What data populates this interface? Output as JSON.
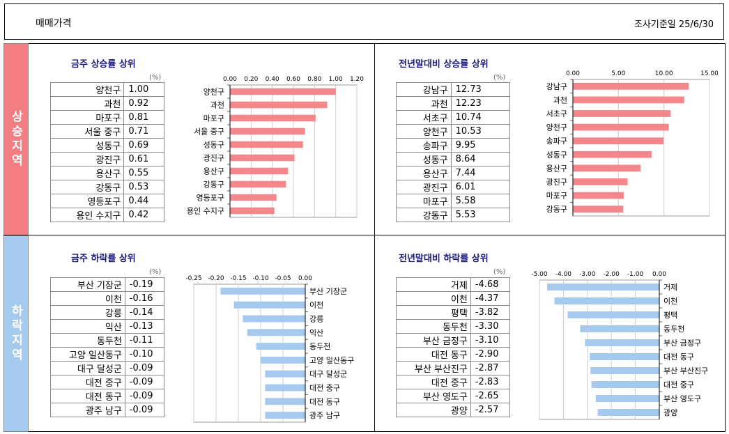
{
  "header": {
    "title": "매매가격",
    "base_date": "조사기준일  25/6/30"
  },
  "bands": {
    "rise": "상승지역",
    "fall": "하락지역"
  },
  "unit_label": "(%)",
  "chart_data": [
    {
      "type": "bar",
      "title": "금주 상승률 상위",
      "categories": [
        "양천구",
        "과천",
        "마포구",
        "서울 중구",
        "성동구",
        "광진구",
        "용산구",
        "강동구",
        "영등포구",
        "용인 수지구"
      ],
      "values": [
        1.0,
        0.92,
        0.81,
        0.71,
        0.69,
        0.61,
        0.55,
        0.53,
        0.44,
        0.42
      ],
      "display_values": [
        "1.00",
        "0.92",
        "0.81",
        "0.71",
        "0.69",
        "0.61",
        "0.55",
        "0.53",
        "0.44",
        "0.42"
      ],
      "xlim": [
        0,
        1.2
      ],
      "ticks": [
        0,
        0.2,
        0.4,
        0.6,
        0.8,
        1.0,
        1.2
      ],
      "tick_labels": [
        "0.00",
        "0.20",
        "0.40",
        "0.60",
        "0.80",
        "1.00",
        "1.20"
      ],
      "color": "#f4878b"
    },
    {
      "type": "bar",
      "title": "전년말대비 상승률 상위",
      "categories": [
        "강남구",
        "과천",
        "서초구",
        "양천구",
        "송파구",
        "성동구",
        "용산구",
        "광진구",
        "마포구",
        "강동구"
      ],
      "values": [
        12.73,
        12.23,
        10.74,
        10.53,
        9.95,
        8.64,
        7.44,
        6.01,
        5.58,
        5.53
      ],
      "display_values": [
        "12.73",
        "12.23",
        "10.74",
        "10.53",
        "9.95",
        "8.64",
        "7.44",
        "6.01",
        "5.58",
        "5.53"
      ],
      "xlim": [
        0,
        15
      ],
      "ticks": [
        0,
        5,
        10,
        15
      ],
      "tick_labels": [
        "0.00",
        "5.00",
        "10.00",
        "15.00"
      ],
      "color": "#f4878b"
    },
    {
      "type": "bar",
      "title": "금주 하락률 상위",
      "categories": [
        "부산 기장군",
        "이천",
        "강릉",
        "익산",
        "동두천",
        "고양 일산동구",
        "대구 달성군",
        "대전 중구",
        "대전 동구",
        "광주 남구"
      ],
      "values": [
        -0.19,
        -0.16,
        -0.14,
        -0.13,
        -0.11,
        -0.1,
        -0.09,
        -0.09,
        -0.09,
        -0.09
      ],
      "display_values": [
        "-0.19",
        "-0.16",
        "-0.14",
        "-0.13",
        "-0.11",
        "-0.10",
        "-0.09",
        "-0.09",
        "-0.09",
        "-0.09"
      ],
      "xlim": [
        -0.25,
        0
      ],
      "ticks": [
        -0.25,
        -0.2,
        -0.15,
        -0.1,
        -0.05,
        0
      ],
      "tick_labels": [
        "-0.25",
        "-0.20",
        "-0.15",
        "-0.10",
        "-0.05",
        "0.00"
      ],
      "color": "#a6c9ee"
    },
    {
      "type": "bar",
      "title": "전년말대비 하락률 상위",
      "categories": [
        "거제",
        "이천",
        "평택",
        "동두천",
        "부산 금정구",
        "대전 동구",
        "부산 부산진구",
        "대전 중구",
        "부산 영도구",
        "광양"
      ],
      "values": [
        -4.68,
        -4.37,
        -3.82,
        -3.3,
        -3.1,
        -2.9,
        -2.87,
        -2.83,
        -2.65,
        -2.57
      ],
      "display_values": [
        "-4.68",
        "-4.37",
        "-3.82",
        "-3.30",
        "-3.10",
        "-2.90",
        "-2.87",
        "-2.83",
        "-2.65",
        "-2.57"
      ],
      "xlim": [
        -5,
        0
      ],
      "ticks": [
        -5,
        -4,
        -3,
        -2,
        -1,
        0
      ],
      "tick_labels": [
        "-5.00",
        "-4.00",
        "-3.00",
        "-2.00",
        "-1.00",
        "0.00"
      ],
      "color": "#a6c9ee"
    }
  ]
}
